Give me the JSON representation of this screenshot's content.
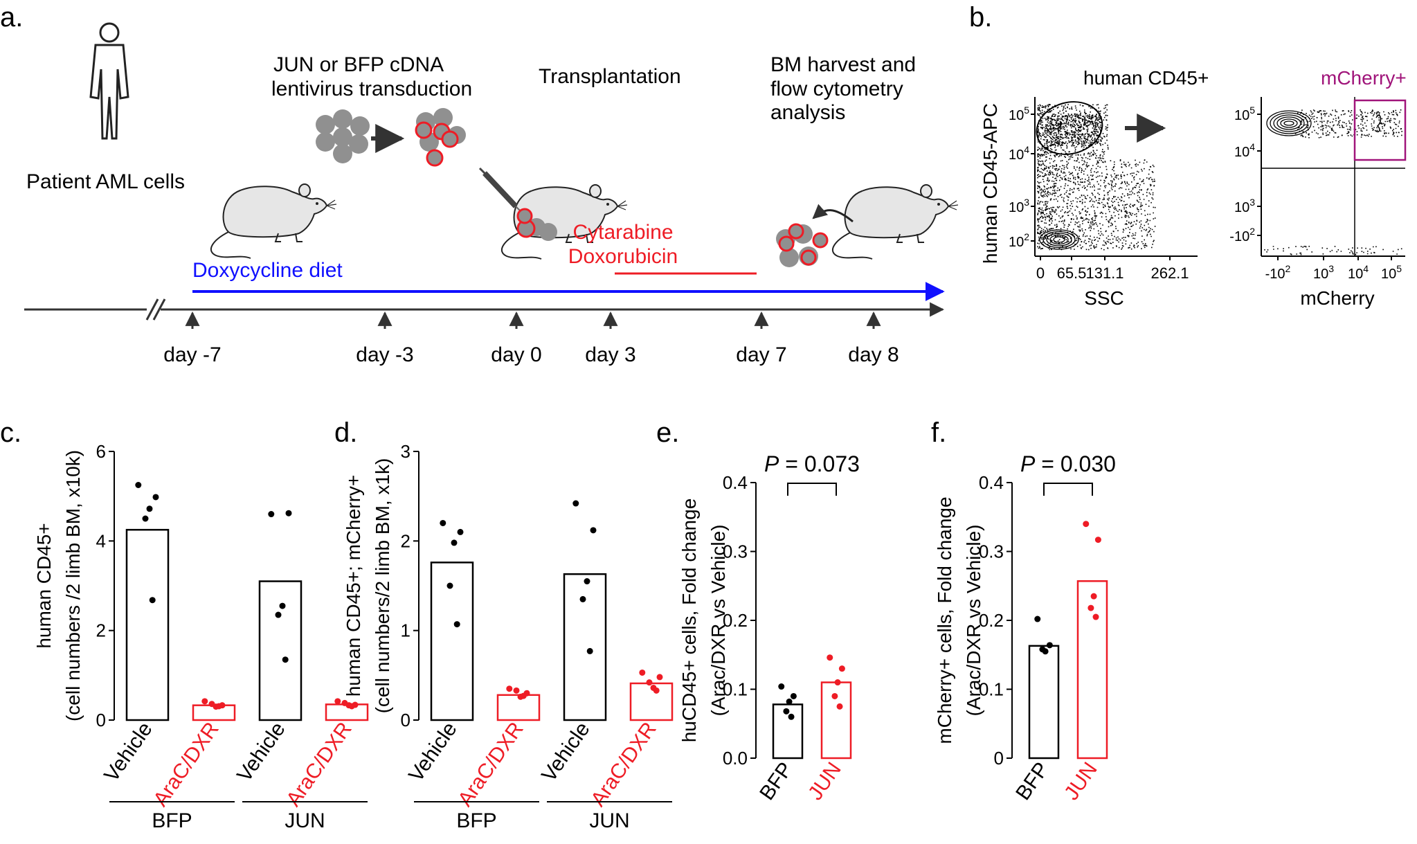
{
  "colors": {
    "black": "#000000",
    "red": "#ee1c25",
    "blue": "#1010ff",
    "magenta": "#a0147a",
    "gray": "#909090",
    "mouse_fill": "#e6e6e6"
  },
  "panel_a": {
    "label": "a.",
    "patient_label": "Patient AML cells",
    "transduction_line1": "JUN or BFP cDNA",
    "transduction_line2": "lentivirus transduction",
    "transplantation": "Transplantation",
    "harvest_line1": "BM harvest and",
    "harvest_line2": "flow cytometry",
    "harvest_line3": "analysis",
    "drug1": "Cytarabine",
    "drug2": "Doxorubicin",
    "diet": "Doxycycline diet",
    "days": [
      "day -7",
      "day -3",
      "day 0",
      "day 3",
      "day 7",
      "day 8"
    ]
  },
  "panel_b": {
    "label": "b.",
    "gate1_label": "human CD45+",
    "gate2_label": "mCherry+",
    "plot1": {
      "ylabel": "human CD45-APC",
      "xlabel": "SSC",
      "x_ticks": [
        "0",
        "65.5",
        "131.1",
        "262.1"
      ],
      "y_ticks": [
        "10",
        "10",
        "10",
        "10"
      ],
      "y_exps": [
        "5",
        "4",
        "3",
        "2"
      ]
    },
    "plot2": {
      "xlabel": "mCherry",
      "x_ticks": [
        "-10",
        "10",
        "10",
        "10"
      ],
      "x_exps": [
        "2",
        "3",
        "4",
        "5"
      ],
      "y_ticks": [
        "10",
        "10",
        "10",
        "-10"
      ],
      "y_exps": [
        "5",
        "4",
        "3",
        "2"
      ]
    }
  },
  "chart_data": [
    {
      "panel": "c.",
      "type": "bar",
      "ylabel_line1": "human CD45+",
      "ylabel_line2": "(cell numbers /2 limb BM, x10k)",
      "ylim": [
        0,
        6
      ],
      "yticks": [
        "0",
        "2",
        "4",
        "6"
      ],
      "categories": [
        "Vehicle",
        "AraC/DXR",
        "Vehicle",
        "AraC/DXR"
      ],
      "category_colors": [
        "black",
        "red",
        "black",
        "red"
      ],
      "groups": [
        "BFP",
        "JUN"
      ],
      "bar_values": [
        4.25,
        0.33,
        3.1,
        0.35
      ],
      "points": [
        [
          5.25,
          4.98,
          4.72,
          4.5,
          2.68
        ],
        [
          0.42,
          0.33,
          0.3,
          0.36,
          0.31
        ],
        [
          4.6,
          4.62,
          2.55,
          2.35,
          1.35
        ],
        [
          0.42,
          0.34,
          0.33,
          0.38,
          0.31
        ]
      ]
    },
    {
      "panel": "d.",
      "type": "bar",
      "ylabel_line1": "human CD45+; mCherry+",
      "ylabel_line2": "(cell numbers/2 limb BM, x1k)",
      "ylim": [
        0,
        3
      ],
      "yticks": [
        "0",
        "1",
        "2",
        "3"
      ],
      "categories": [
        "Vehicle",
        "AraC/DXR",
        "Vehicle",
        "AraC/DXR"
      ],
      "category_colors": [
        "black",
        "red",
        "black",
        "red"
      ],
      "groups": [
        "BFP",
        "JUN"
      ],
      "bar_values": [
        1.76,
        0.28,
        1.63,
        0.41
      ],
      "points": [
        [
          2.2,
          2.1,
          1.98,
          1.5,
          1.07
        ],
        [
          0.35,
          0.3,
          0.26,
          0.33,
          0.27
        ],
        [
          2.42,
          2.12,
          1.55,
          1.35,
          0.77
        ],
        [
          0.53,
          0.48,
          0.36,
          0.42,
          0.33
        ]
      ]
    },
    {
      "panel": "e.",
      "type": "bar",
      "ylabel_line1": "huCD45+ cells, Fold change",
      "ylabel_line2": "(Arac/DXR vs Vehicle)",
      "ylim": [
        0,
        0.4
      ],
      "yticks": [
        "0.0",
        "0.1",
        "0.2",
        "0.3",
        "0.4"
      ],
      "categories": [
        "BFP",
        "JUN"
      ],
      "category_colors": [
        "black",
        "red"
      ],
      "bar_values": [
        0.078,
        0.11
      ],
      "points": [
        [
          0.104,
          0.09,
          0.082,
          0.068,
          0.06
        ],
        [
          0.146,
          0.13,
          0.11,
          0.09,
          0.075
        ]
      ],
      "p_italic": "P",
      "p_text": " = 0.073"
    },
    {
      "panel": "f.",
      "type": "bar",
      "ylabel_line1": "mCherry+ cells, Fold change",
      "ylabel_line2": "(Arac/DXR vs Vehicle)",
      "ylim": [
        0,
        0.4
      ],
      "yticks": [
        "0",
        "0.1",
        "0.2",
        "0.3",
        "0.4"
      ],
      "categories": [
        "BFP",
        "JUN"
      ],
      "category_colors": [
        "black",
        "red"
      ],
      "bar_values": [
        0.163,
        0.257
      ],
      "points": [
        [
          0.202,
          0.164,
          0.155,
          0.158
        ],
        [
          0.34,
          0.317,
          0.235,
          0.218,
          0.205
        ]
      ],
      "p_italic": "P",
      "p_text": " = 0.030"
    }
  ]
}
